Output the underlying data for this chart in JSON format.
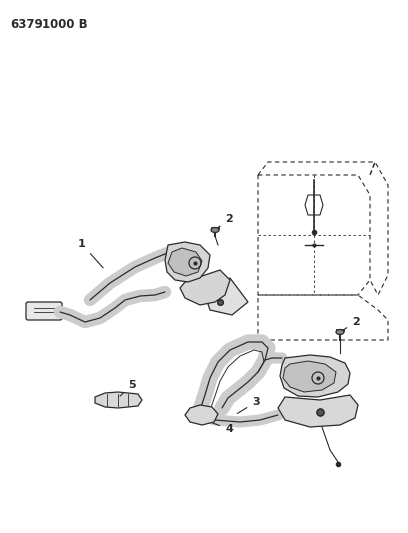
{
  "title_part1": "6379",
  "title_part2": "1000 B",
  "background_color": "#ffffff",
  "line_color": "#2a2a2a",
  "figsize": [
    4.08,
    5.33
  ],
  "dpi": 100
}
